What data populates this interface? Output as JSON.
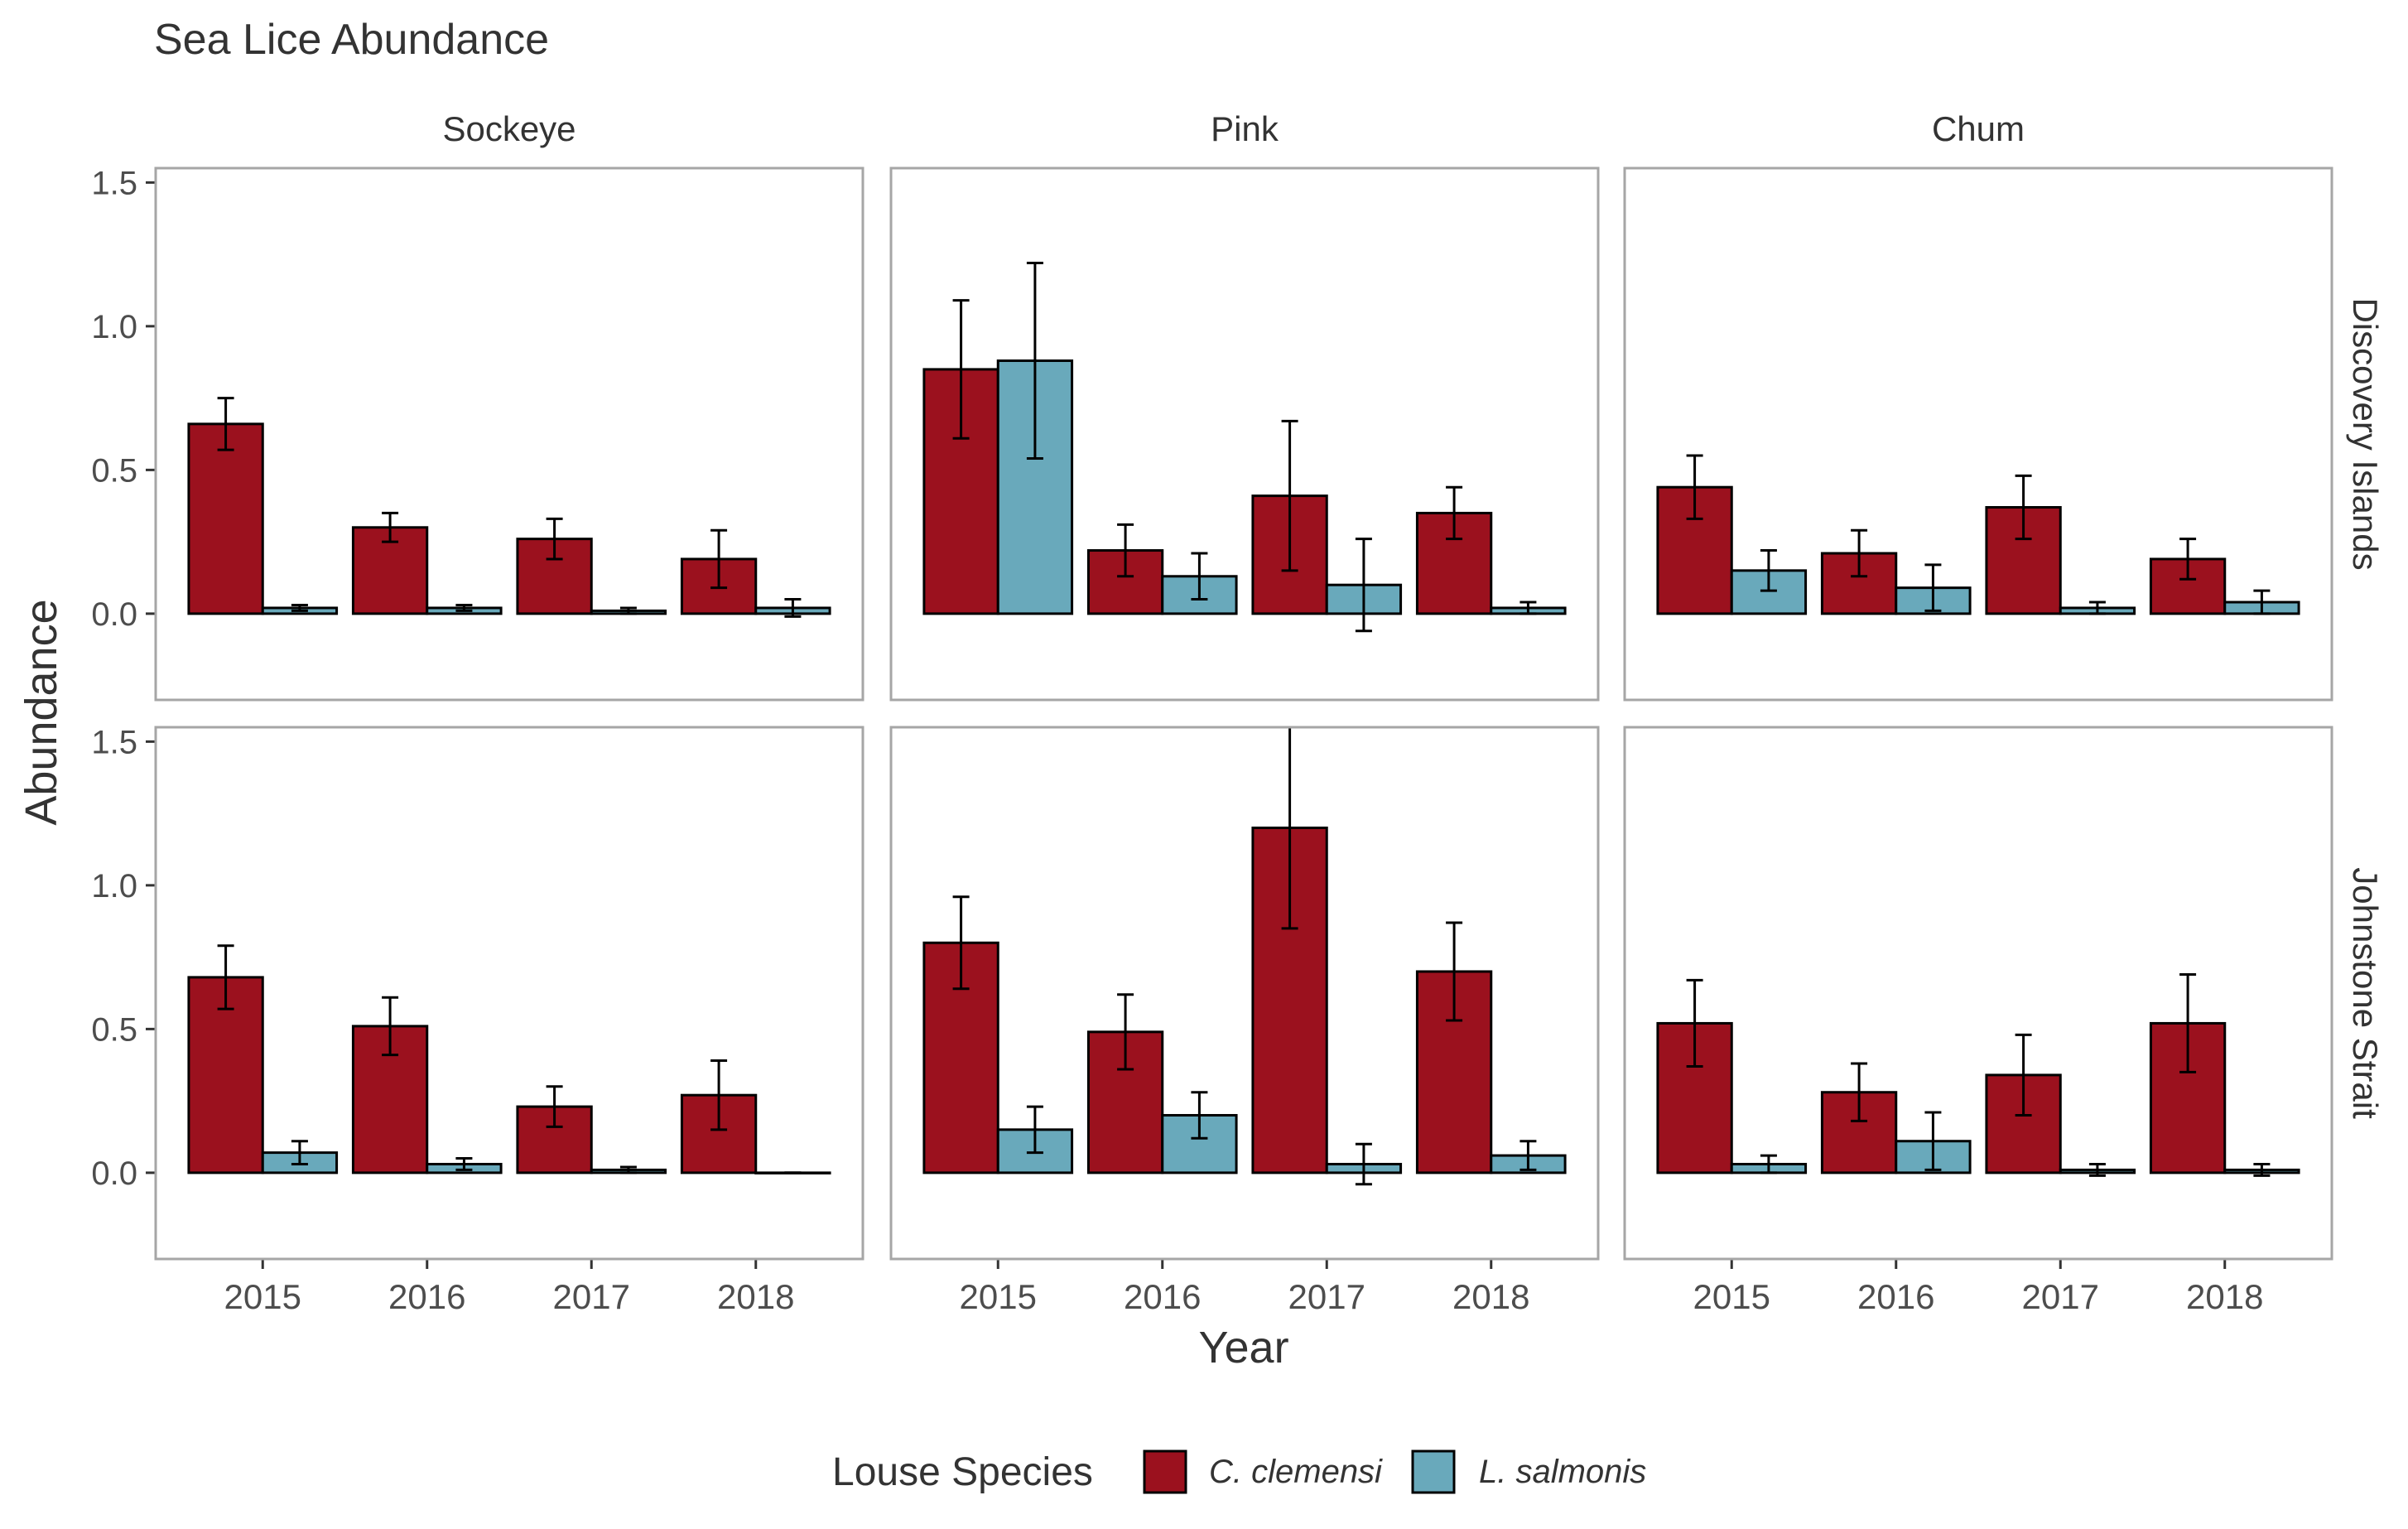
{
  "chart_data": {
    "type": "bar",
    "title": "Sea Lice Abundance",
    "xlabel": "Year",
    "ylabel": "Abundance",
    "ylim": [
      -0.3,
      1.55
    ],
    "yticks": [
      "0.0",
      "0.5",
      "1.0",
      "1.5"
    ],
    "categories": [
      "2015",
      "2016",
      "2017",
      "2018"
    ],
    "columns": [
      "Sockeye",
      "Pink",
      "Chum"
    ],
    "rows": [
      "Discovery Islands",
      "Johnstone Strait"
    ],
    "legend": {
      "title": "Louse Species",
      "placement": "bottom",
      "items": [
        "C. clemensi",
        "L. salmonis"
      ]
    },
    "colors": {
      "C. clemensi": "#9b111e",
      "L. salmonis": "#69a9bb"
    },
    "grid": false,
    "error_bars": true,
    "panels": [
      {
        "row": "Discovery Islands",
        "column": "Sockeye",
        "series": [
          {
            "name": "C. clemensi",
            "values": [
              0.66,
              0.3,
              0.26,
              0.19
            ],
            "err_low": [
              0.57,
              0.25,
              0.19,
              0.09
            ],
            "err_high": [
              0.75,
              0.35,
              0.33,
              0.29
            ]
          },
          {
            "name": "L. salmonis",
            "values": [
              0.02,
              0.02,
              0.01,
              0.02
            ],
            "err_low": [
              0.01,
              0.01,
              0.0,
              -0.01
            ],
            "err_high": [
              0.03,
              0.03,
              0.02,
              0.05
            ]
          }
        ]
      },
      {
        "row": "Discovery Islands",
        "column": "Pink",
        "series": [
          {
            "name": "C. clemensi",
            "values": [
              0.85,
              0.22,
              0.41,
              0.35
            ],
            "err_low": [
              0.61,
              0.13,
              0.15,
              0.26
            ],
            "err_high": [
              1.09,
              0.31,
              0.67,
              0.44
            ]
          },
          {
            "name": "L. salmonis",
            "values": [
              0.88,
              0.13,
              0.1,
              0.02
            ],
            "err_low": [
              0.54,
              0.05,
              -0.06,
              0.0
            ],
            "err_high": [
              1.22,
              0.21,
              0.26,
              0.04
            ]
          }
        ]
      },
      {
        "row": "Discovery Islands",
        "column": "Chum",
        "series": [
          {
            "name": "C. clemensi",
            "values": [
              0.44,
              0.21,
              0.37,
              0.19
            ],
            "err_low": [
              0.33,
              0.13,
              0.26,
              0.12
            ],
            "err_high": [
              0.55,
              0.29,
              0.48,
              0.26
            ]
          },
          {
            "name": "L. salmonis",
            "values": [
              0.15,
              0.09,
              0.02,
              0.04
            ],
            "err_low": [
              0.08,
              0.01,
              0.0,
              0.0
            ],
            "err_high": [
              0.22,
              0.17,
              0.04,
              0.08
            ]
          }
        ]
      },
      {
        "row": "Johnstone Strait",
        "column": "Sockeye",
        "series": [
          {
            "name": "C. clemensi",
            "values": [
              0.68,
              0.51,
              0.23,
              0.27
            ],
            "err_low": [
              0.57,
              0.41,
              0.16,
              0.15
            ],
            "err_high": [
              0.79,
              0.61,
              0.3,
              0.39
            ]
          },
          {
            "name": "L. salmonis",
            "values": [
              0.07,
              0.03,
              0.01,
              0.0
            ],
            "err_low": [
              0.03,
              0.01,
              0.0,
              0.0
            ],
            "err_high": [
              0.11,
              0.05,
              0.02,
              0.0
            ]
          }
        ]
      },
      {
        "row": "Johnstone Strait",
        "column": "Pink",
        "series": [
          {
            "name": "C. clemensi",
            "values": [
              0.8,
              0.49,
              1.2,
              0.7
            ],
            "err_low": [
              0.64,
              0.36,
              0.85,
              0.53
            ],
            "err_high": [
              0.96,
              0.62,
              1.55,
              0.87
            ]
          },
          {
            "name": "L. salmonis",
            "values": [
              0.15,
              0.2,
              0.03,
              0.06
            ],
            "err_low": [
              0.07,
              0.12,
              -0.04,
              0.01
            ],
            "err_high": [
              0.23,
              0.28,
              0.1,
              0.11
            ]
          }
        ]
      },
      {
        "row": "Johnstone Strait",
        "column": "Chum",
        "series": [
          {
            "name": "C. clemensi",
            "values": [
              0.52,
              0.28,
              0.34,
              0.52
            ],
            "err_low": [
              0.37,
              0.18,
              0.2,
              0.35
            ],
            "err_high": [
              0.67,
              0.38,
              0.48,
              0.69
            ]
          },
          {
            "name": "L. salmonis",
            "values": [
              0.03,
              0.11,
              0.01,
              0.01
            ],
            "err_low": [
              0.0,
              0.01,
              -0.01,
              -0.01
            ],
            "err_high": [
              0.06,
              0.21,
              0.03,
              0.03
            ]
          }
        ]
      }
    ]
  }
}
